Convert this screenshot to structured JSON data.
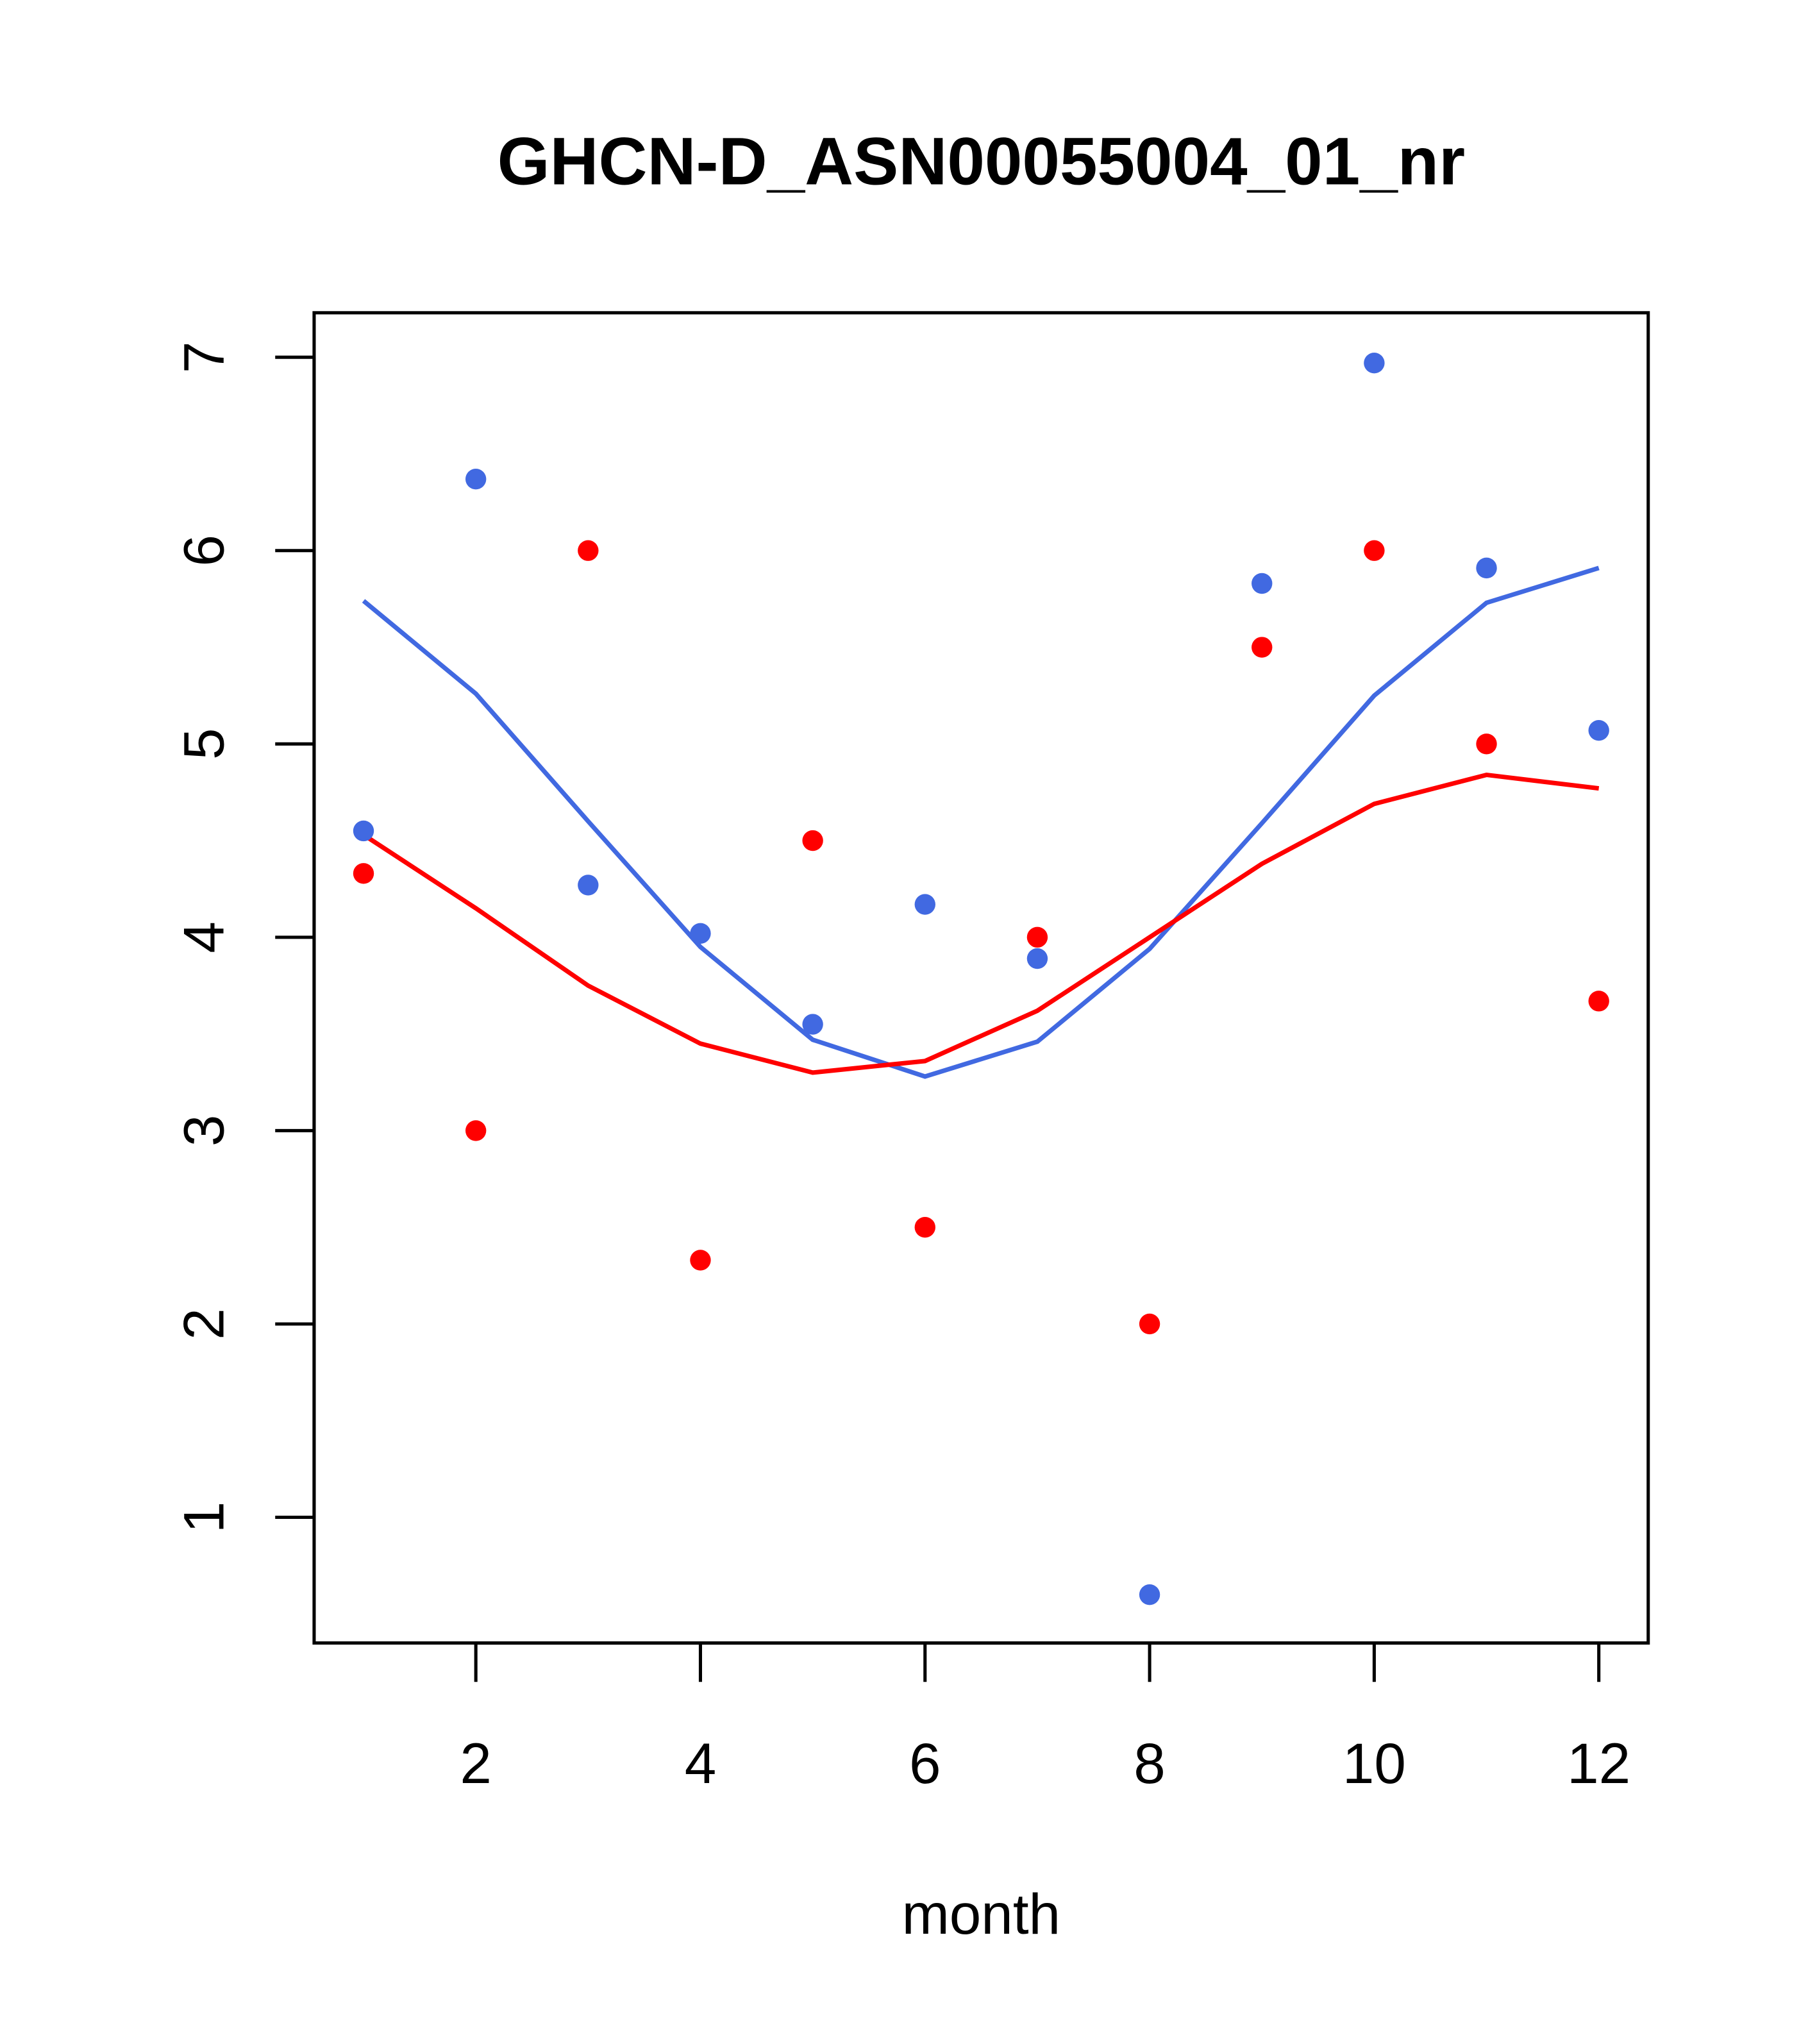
{
  "chart_data": {
    "type": "scatter",
    "title": "GHCN-D_ASN00055004_01_nr",
    "xlabel": "month",
    "ylabel": "",
    "xlim": [
      0.56,
      12.44
    ],
    "ylim": [
      0.35,
      7.23
    ],
    "xticks": [
      2,
      4,
      6,
      8,
      10,
      12
    ],
    "xtick_labels": [
      "2",
      "4",
      "6",
      "8",
      "10",
      "12"
    ],
    "yticks": [
      1,
      2,
      3,
      4,
      5,
      6,
      7
    ],
    "ytick_labels": [
      "1",
      "2",
      "3",
      "4",
      "5",
      "6",
      "7"
    ],
    "x": [
      1,
      2,
      3,
      4,
      5,
      6,
      7,
      8,
      9,
      10,
      11,
      12
    ],
    "series": [
      {
        "name": "blue points",
        "kind": "points",
        "color": "#4169e1",
        "values": [
          4.55,
          6.37,
          4.27,
          4.02,
          3.55,
          4.17,
          3.89,
          0.6,
          5.83,
          6.97,
          5.91,
          5.07
        ]
      },
      {
        "name": "red points",
        "kind": "points",
        "color": "#ff0000",
        "values": [
          4.33,
          3.0,
          6.0,
          2.33,
          4.5,
          2.5,
          4.0,
          2.0,
          5.5,
          6.0,
          5.0,
          3.67
        ]
      },
      {
        "name": "blue smooth",
        "kind": "line",
        "color": "#4169e1",
        "values": [
          5.74,
          5.26,
          4.6,
          3.95,
          3.47,
          3.28,
          3.46,
          3.94,
          4.59,
          5.25,
          5.73,
          5.91
        ]
      },
      {
        "name": "red smooth",
        "kind": "line",
        "color": "#ff0000",
        "values": [
          4.53,
          4.15,
          3.75,
          3.45,
          3.3,
          3.36,
          3.62,
          4.0,
          4.38,
          4.69,
          4.84,
          4.77
        ]
      }
    ],
    "grid": false,
    "legend": "none"
  }
}
